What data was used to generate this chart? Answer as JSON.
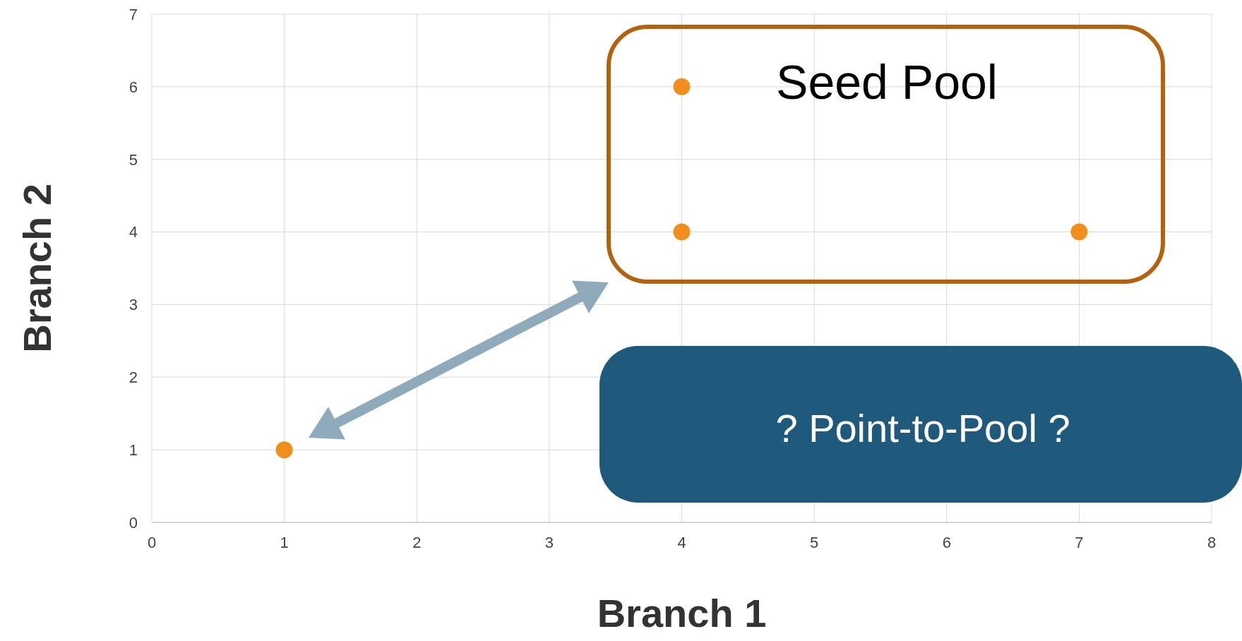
{
  "chart_data": {
    "type": "scatter",
    "xlabel": "Branch 1",
    "ylabel": "Branch 2",
    "x": [
      1,
      4,
      4,
      7
    ],
    "values": [
      1,
      6,
      4,
      4
    ],
    "color": "#f28e1c",
    "marker": "circle",
    "xlim": [
      0,
      8
    ],
    "xticks": [
      0,
      1,
      2,
      3,
      4,
      5,
      6,
      7,
      8
    ],
    "ylim": [
      0,
      7
    ],
    "yticks": [
      0,
      1,
      2,
      3,
      4,
      5,
      6,
      7
    ],
    "grid": true,
    "annotations": [
      "Seed Pool",
      "? Point-to-Pool ?"
    ]
  }
}
